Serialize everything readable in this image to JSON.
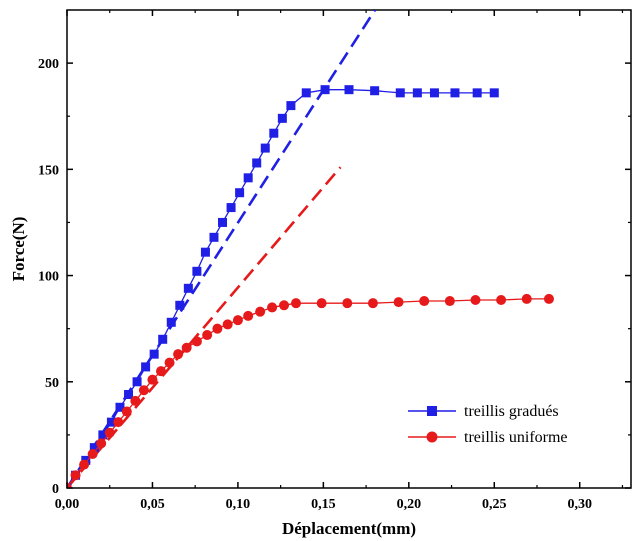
{
  "chart_data": {
    "type": "line",
    "title": "",
    "xlabel": "Déplacement(mm)",
    "ylabel": "Force(N)",
    "xlim": [
      0,
      0.33
    ],
    "ylim": [
      0,
      225
    ],
    "x_ticks": [
      "0,00",
      "0,05",
      "0,10",
      "0,15",
      "0,20",
      "0,25",
      "0,30"
    ],
    "x_tick_values": [
      0,
      0.05,
      0.1,
      0.15,
      0.2,
      0.25,
      0.3
    ],
    "y_ticks": [
      "0",
      "50",
      "100",
      "150",
      "200"
    ],
    "y_tick_values": [
      0,
      50,
      100,
      150,
      200
    ],
    "grid": false,
    "legend_position": "bottom-right",
    "series": [
      {
        "name": "treillis gradués",
        "color": "#1f1fe6",
        "marker": "square",
        "x": [
          0.0,
          0.005,
          0.011,
          0.016,
          0.021,
          0.026,
          0.031,
          0.036,
          0.041,
          0.046,
          0.051,
          0.056,
          0.061,
          0.066,
          0.071,
          0.076,
          0.081,
          0.086,
          0.091,
          0.096,
          0.101,
          0.106,
          0.111,
          0.116,
          0.121,
          0.126,
          0.131,
          0.14,
          0.151,
          0.165,
          0.18,
          0.195,
          0.205,
          0.215,
          0.227,
          0.24,
          0.25
        ],
        "y": [
          0,
          6,
          13,
          19,
          25,
          31,
          38,
          44,
          50,
          57,
          63,
          70,
          78,
          86,
          94,
          102,
          111,
          118,
          125,
          132,
          139,
          146,
          153,
          160,
          167,
          174,
          180,
          186,
          187.5,
          187.5,
          187,
          186,
          186,
          186,
          186,
          186,
          186
        ]
      },
      {
        "name": "treillis uniforme",
        "color": "#e61a1a",
        "marker": "circle",
        "x": [
          0.0,
          0.005,
          0.01,
          0.015,
          0.02,
          0.025,
          0.03,
          0.035,
          0.04,
          0.045,
          0.05,
          0.055,
          0.06,
          0.065,
          0.07,
          0.076,
          0.082,
          0.088,
          0.094,
          0.1,
          0.106,
          0.113,
          0.12,
          0.127,
          0.134,
          0.149,
          0.164,
          0.179,
          0.194,
          0.209,
          0.224,
          0.239,
          0.254,
          0.269,
          0.282
        ],
        "y": [
          0,
          6,
          11,
          16,
          21,
          26,
          31,
          36,
          41,
          46,
          51,
          55,
          59,
          63,
          66,
          69,
          72,
          75,
          77,
          79,
          81,
          83,
          85,
          86,
          87,
          87,
          87,
          87,
          87.5,
          88,
          88,
          88.5,
          88.5,
          89,
          89
        ]
      }
    ],
    "reference_lines": [
      {
        "series": "treillis gradués",
        "style": "dashed",
        "color": "#1f1fe6",
        "x": [
          0,
          0.181
        ],
        "y": [
          0,
          226
        ]
      },
      {
        "series": "treillis uniforme",
        "style": "dashed",
        "color": "#e61a1a",
        "x": [
          0,
          0.16
        ],
        "y": [
          0,
          151
        ]
      }
    ]
  }
}
